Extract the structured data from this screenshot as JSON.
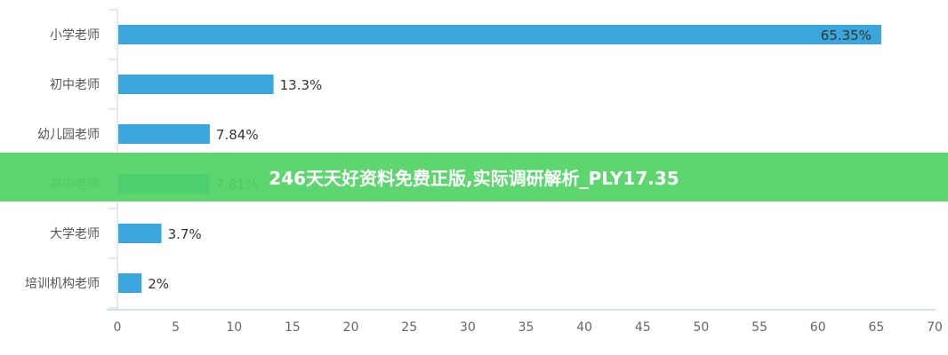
{
  "chart_data": {
    "type": "bar",
    "orientation": "horizontal",
    "categories": [
      "小学老师",
      "初中老师",
      "幼儿园老师",
      "高中老师",
      "大学老师",
      "培训机构老师"
    ],
    "values": [
      65.35,
      13.3,
      7.84,
      7.81,
      3.7,
      2
    ],
    "data_labels": [
      "65.35%",
      "13.3%",
      "7.84%",
      "7.81%",
      "3.7%",
      "2%"
    ],
    "xlim": [
      0,
      70
    ],
    "xticks": [
      0,
      5,
      10,
      15,
      20,
      25,
      30,
      35,
      40,
      45,
      50,
      55,
      60,
      65,
      70
    ],
    "bar_color": "#3aa6dc",
    "grid": false
  },
  "banner": {
    "text": "246天天好资料免费正版,实际调研解析_PLY17.35",
    "color": "#5dd672"
  }
}
